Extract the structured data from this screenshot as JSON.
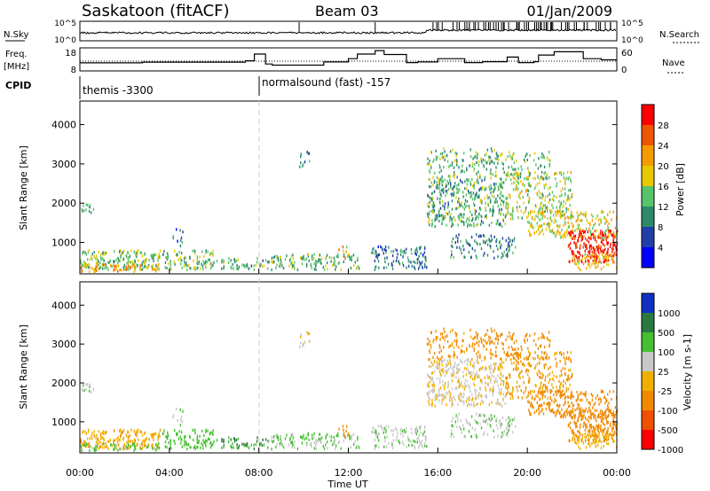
{
  "header": {
    "station": "Saskatoon (fitACF)",
    "beam": "Beam 03",
    "date": "01/Jan/2009"
  },
  "time_axis": {
    "ticks": [
      "00:00",
      "04:00",
      "08:00",
      "12:00",
      "16:00",
      "20:00",
      "00:00"
    ],
    "label": "Time UT"
  },
  "nsky_panel": {
    "left_label": "N.Sky",
    "right_label": "N.Search",
    "left_ticks": [
      "10^5",
      "10^0"
    ],
    "right_ticks": [
      "10^5",
      "10^0"
    ]
  },
  "freq_panel": {
    "left_label_1": "Freq.",
    "left_label_2": "[MHz]",
    "right_label": "Nave",
    "left_ticks": [
      "18",
      "8"
    ],
    "right_ticks": [
      "60",
      "0"
    ]
  },
  "cpid_panel": {
    "label": "CPID",
    "entries": [
      {
        "start_hour": 0,
        "text": "themis -3300"
      },
      {
        "start_hour": 8.0,
        "text": "normalsound (fast) -157"
      }
    ]
  },
  "power_panel": {
    "ylabel": "Slant Range [km]",
    "yticks": [
      "1000",
      "2000",
      "3000",
      "4000"
    ],
    "colorbar_label": "Power [dB]",
    "colorbar_ticks": [
      "4",
      "8",
      "12",
      "16",
      "20",
      "24",
      "28"
    ]
  },
  "velocity_panel": {
    "ylabel": "Slant Range [km]",
    "yticks": [
      "1000",
      "2000",
      "3000",
      "4000"
    ],
    "colorbar_label": "Velocity [m s-1]",
    "colorbar_ticks": [
      "1000",
      "500",
      "100",
      "25",
      "-25",
      "-100",
      "-500",
      "-1000"
    ]
  },
  "chart_data": {
    "type": "heatmap",
    "x_range_hours": [
      0,
      24
    ],
    "y_range_km": [
      200,
      4600
    ],
    "power_scale_db": [
      0,
      32
    ],
    "power_colors": [
      "#0000ff",
      "#1f3fa8",
      "#2c8a6a",
      "#58c46a",
      "#e8c800",
      "#f59a00",
      "#ee5500",
      "#ff0000"
    ],
    "velocity_colors": [
      "#1030c0",
      "#2a7a40",
      "#44c030",
      "#c8c8c8",
      "#f0b000",
      "#f08a00",
      "#f05000",
      "#ff0000"
    ],
    "scatter_regions": [
      {
        "t0": 0.0,
        "t1": 0.6,
        "r0": 1700,
        "r1": 2000,
        "power_db": 10,
        "velocity": 20,
        "density": 0.5
      },
      {
        "t0": 0.0,
        "t1": 3.6,
        "r0": 300,
        "r1": 800,
        "power_db": 14,
        "velocity": -80,
        "density": 0.75
      },
      {
        "t0": 0.0,
        "t1": 3.6,
        "r0": 250,
        "r1": 450,
        "power_db": 22,
        "velocity": 40,
        "density": 0.55
      },
      {
        "t0": 3.6,
        "t1": 6.0,
        "r0": 300,
        "r1": 800,
        "power_db": 13,
        "velocity": 60,
        "density": 0.6
      },
      {
        "t0": 4.1,
        "t1": 4.6,
        "r0": 900,
        "r1": 1400,
        "power_db": 8,
        "velocity": 10,
        "density": 0.3
      },
      {
        "t0": 6.0,
        "t1": 8.3,
        "r0": 300,
        "r1": 600,
        "power_db": 12,
        "velocity": 110,
        "density": 0.5
      },
      {
        "t0": 8.3,
        "t1": 12.5,
        "r0": 300,
        "r1": 700,
        "power_db": 13,
        "velocity": 30,
        "density": 0.55
      },
      {
        "t0": 9.8,
        "t1": 10.3,
        "r0": 2900,
        "r1": 3300,
        "power_db": 9,
        "velocity": -15,
        "density": 0.4
      },
      {
        "t0": 11.5,
        "t1": 12.0,
        "r0": 600,
        "r1": 900,
        "power_db": 20,
        "velocity": -200,
        "density": 0.45
      },
      {
        "t0": 13.0,
        "t1": 15.5,
        "r0": 300,
        "r1": 900,
        "power_db": 8,
        "velocity": 15,
        "density": 0.55
      },
      {
        "t0": 15.5,
        "t1": 19.0,
        "r0": 1400,
        "r1": 2600,
        "power_db": 12,
        "velocity": -20,
        "density": 0.65
      },
      {
        "t0": 15.5,
        "t1": 18.5,
        "r0": 2600,
        "r1": 3400,
        "power_db": 13,
        "velocity": -160,
        "density": 0.4
      },
      {
        "t0": 16.5,
        "t1": 19.5,
        "r0": 600,
        "r1": 1200,
        "power_db": 10,
        "velocity": 15,
        "density": 0.45
      },
      {
        "t0": 19.0,
        "t1": 22.0,
        "r0": 1600,
        "r1": 2800,
        "power_db": 16,
        "velocity": -110,
        "density": 0.5
      },
      {
        "t0": 20.0,
        "t1": 24.0,
        "r0": 1100,
        "r1": 1800,
        "power_db": 18,
        "velocity": -240,
        "density": 0.6
      },
      {
        "t0": 21.8,
        "t1": 24.0,
        "r0": 500,
        "r1": 1300,
        "power_db": 30,
        "velocity": -280,
        "density": 0.9
      },
      {
        "t0": 22.0,
        "t1": 24.0,
        "r0": 300,
        "r1": 700,
        "power_db": 20,
        "velocity": -60,
        "density": 0.6
      },
      {
        "t0": 18.5,
        "t1": 21.0,
        "r0": 2600,
        "r1": 3300,
        "power_db": 14,
        "velocity": -200,
        "density": 0.35
      }
    ],
    "freq_mhz": [
      {
        "t": 0.0,
        "v": 11.5
      },
      {
        "t": 2.8,
        "v": 11.8
      },
      {
        "t": 7.4,
        "v": 12.4
      },
      {
        "t": 7.8,
        "v": 15.3
      },
      {
        "t": 8.3,
        "v": 11.0
      },
      {
        "t": 8.6,
        "v": 10.5
      },
      {
        "t": 10.2,
        "v": 10.5
      },
      {
        "t": 10.9,
        "v": 11.9
      },
      {
        "t": 12.0,
        "v": 13.3
      },
      {
        "t": 12.4,
        "v": 15.3
      },
      {
        "t": 13.2,
        "v": 16.8
      },
      {
        "t": 13.6,
        "v": 15.1
      },
      {
        "t": 14.6,
        "v": 11.6
      },
      {
        "t": 15.1,
        "v": 11.9
      },
      {
        "t": 16.0,
        "v": 13.3
      },
      {
        "t": 17.1,
        "v": 13.3
      },
      {
        "t": 17.2,
        "v": 11.6
      },
      {
        "t": 18.0,
        "v": 12.0
      },
      {
        "t": 19.1,
        "v": 14.0
      },
      {
        "t": 19.6,
        "v": 11.6
      },
      {
        "t": 20.3,
        "v": 12.0
      },
      {
        "t": 20.5,
        "v": 14.9
      },
      {
        "t": 21.2,
        "v": 16.3
      },
      {
        "t": 22.5,
        "v": 13.3
      },
      {
        "t": 23.3,
        "v": 12.8
      }
    ],
    "nave_dotted": 30
  }
}
